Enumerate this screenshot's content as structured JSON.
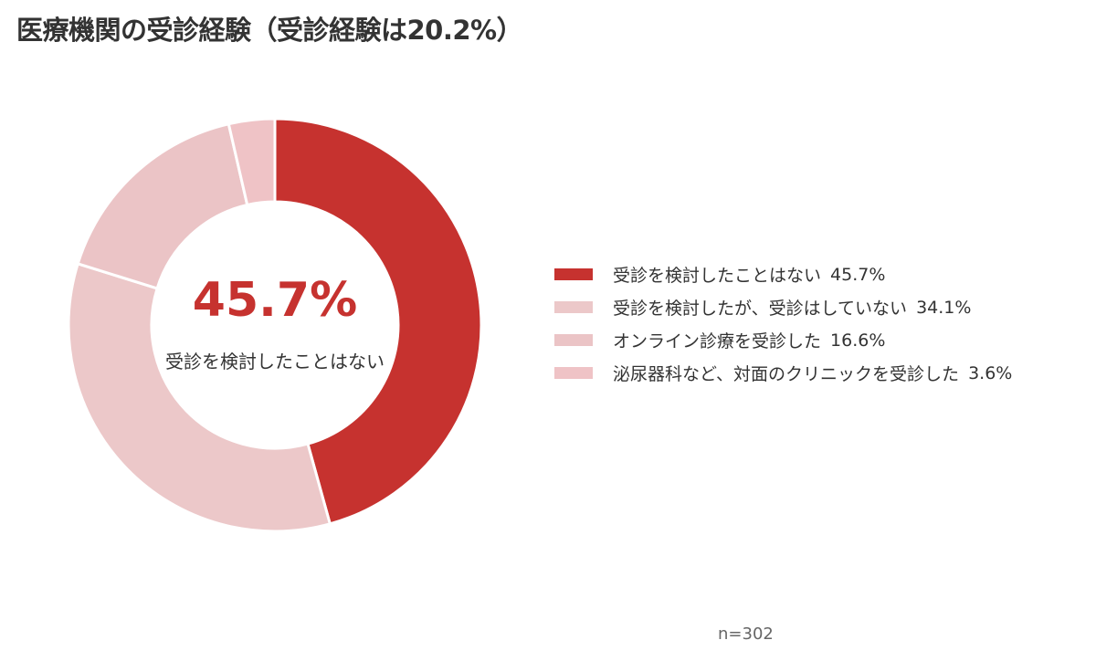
{
  "title": "医療機関の受診経験（受診経験は20.2%）",
  "n_label": "n=302",
  "colors": {
    "slice_1": "#c6322f",
    "slice_2": "#ecc8c9",
    "slice_3": "#ebc4c6",
    "slice_4": "#efc3c6"
  },
  "chart_data": {
    "type": "pie",
    "donut": true,
    "title": "医療機関の受診経験（受診経験は20.2%）",
    "unit": "%",
    "center_value": "45.7%",
    "center_label": "受診を検討したことはない",
    "legend_position": "right",
    "slices": [
      {
        "label": "受診を検討したことはない",
        "value": 45.7,
        "value_text": "45.7%"
      },
      {
        "label": "受診を検討したが、受診はしていない",
        "value": 34.1,
        "value_text": "34.1%"
      },
      {
        "label": "オンライン診療を受診した",
        "value": 16.6,
        "value_text": "16.6%"
      },
      {
        "label": "泌尿器科など、対面のクリニックを受診した",
        "value": 3.6,
        "value_text": "3.6%"
      }
    ]
  }
}
